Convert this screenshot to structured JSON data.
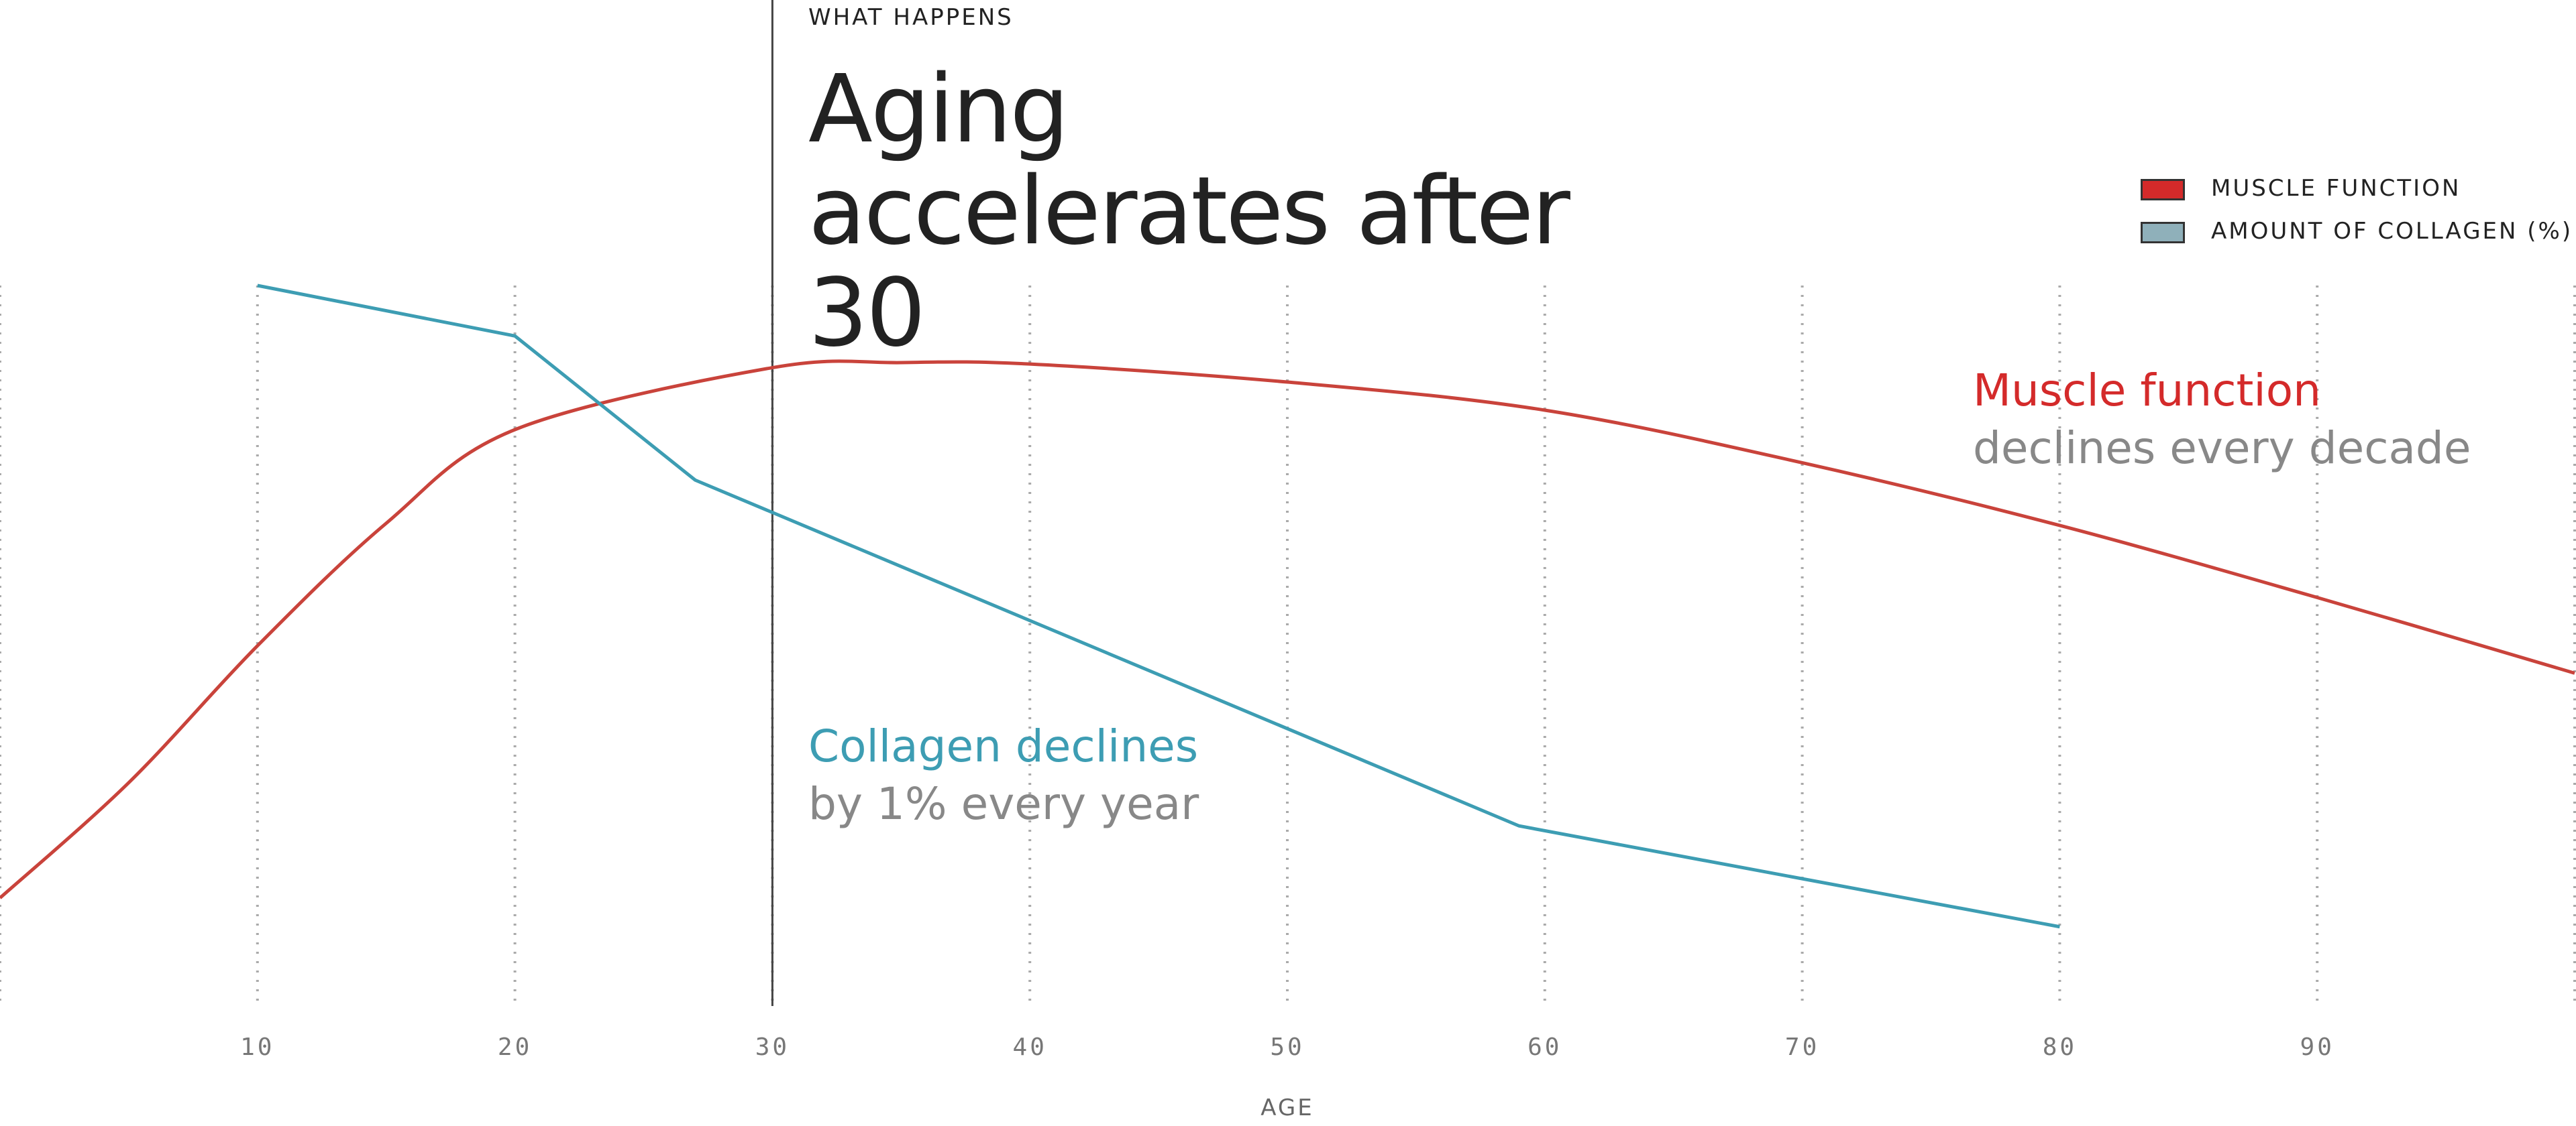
{
  "chart_data": {
    "type": "line",
    "eyebrow": "WHAT HAPPENS",
    "title": "Aging accelerates after 30",
    "x_label": "AGE",
    "xlim": [
      0,
      100
    ],
    "ylim": [
      0,
      100
    ],
    "xticks": [
      10,
      20,
      30,
      40,
      50,
      60,
      70,
      80,
      90
    ],
    "grid": true,
    "highlight_x": 30,
    "legend_position": "upper right",
    "series": [
      {
        "name": "MUSCLE FUNCTION",
        "color": "#c9433b",
        "legend_color": "#d42a2a",
        "smooth": true,
        "x": [
          0,
          5,
          10,
          15,
          20,
          30,
          35,
          40,
          50,
          60,
          70,
          80,
          90,
          100
        ],
        "values": [
          15,
          31,
          50,
          67,
          80,
          88.6,
          89.3,
          89.1,
          86.6,
          82.7,
          75.4,
          66.7,
          56.7,
          46.2
        ]
      },
      {
        "name": "AMOUNT OF COLLAGEN (%)",
        "color": "#3d9db3",
        "legend_color": "#8fb0ba",
        "smooth": false,
        "x": [
          10,
          20,
          27,
          59,
          80
        ],
        "values": [
          100,
          93,
          73,
          25,
          11
        ]
      }
    ],
    "annotations": [
      {
        "title": "Muscle function",
        "text": "declines every decade",
        "color": "#d42a2a"
      },
      {
        "title": "Collagen declines",
        "text": "by 1% every year",
        "color": "#3d9db3"
      }
    ]
  }
}
